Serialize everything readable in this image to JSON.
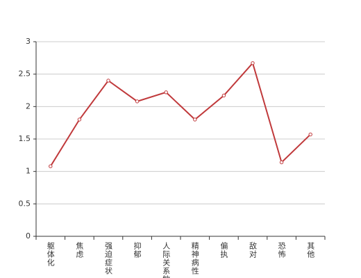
{
  "chart_data": {
    "type": "line",
    "categories": [
      "躯体化",
      "焦虑",
      "强迫症状",
      "抑郁",
      "人际关系敏感",
      "精神病性",
      "偏执",
      "敌对",
      "恐怖",
      "其他"
    ],
    "values": [
      1.08,
      1.8,
      2.4,
      2.08,
      2.22,
      1.8,
      2.17,
      2.67,
      1.14,
      1.57
    ],
    "color": "#c0393b",
    "ylim": [
      0,
      3
    ],
    "yticks": [
      0,
      0.5,
      1,
      1.5,
      2,
      2.5,
      3
    ],
    "grid": true
  }
}
